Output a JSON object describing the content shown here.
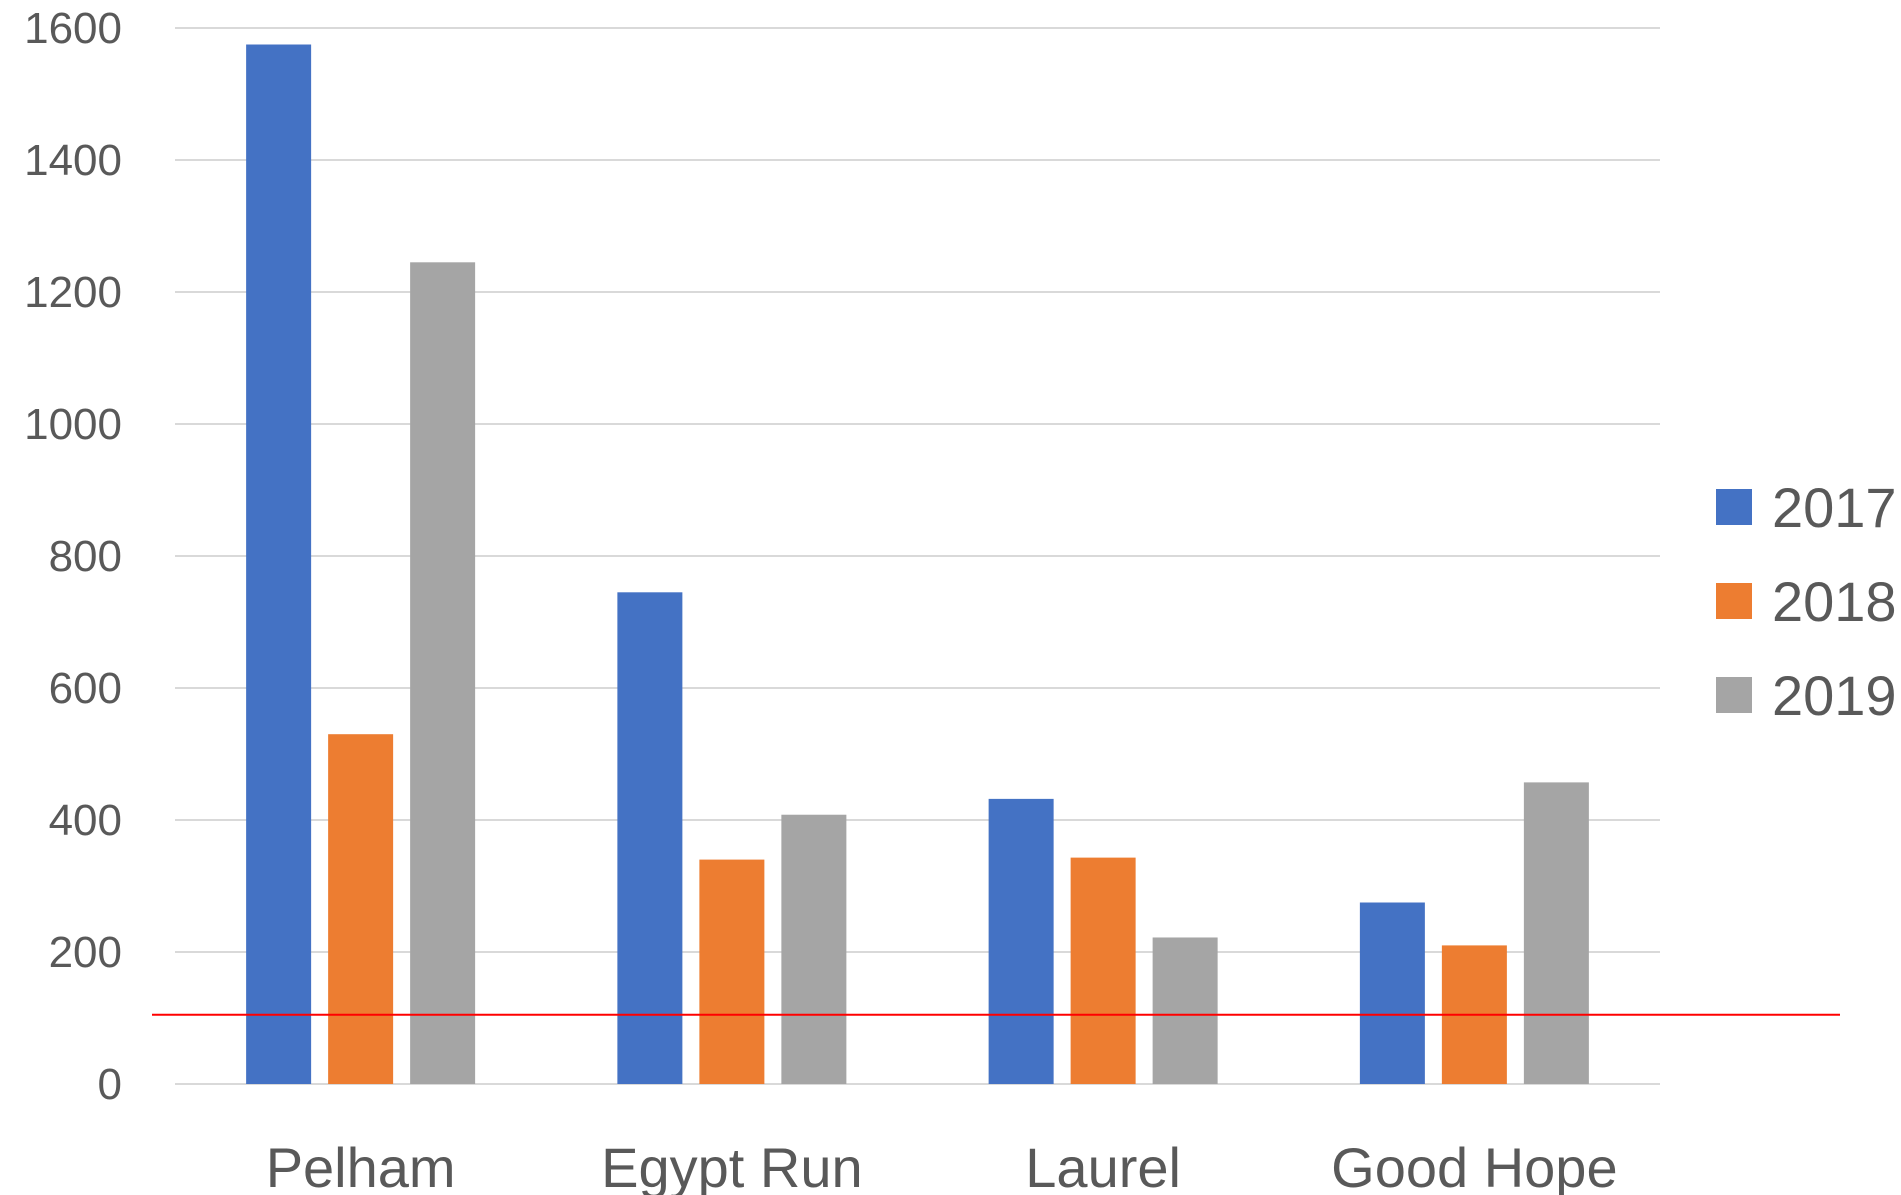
{
  "chart_data": {
    "type": "bar",
    "title": "",
    "xlabel": "",
    "ylabel": "",
    "categories": [
      "Pelham",
      "Egypt Run",
      "Laurel",
      "Good Hope"
    ],
    "series": [
      {
        "name": "2017",
        "color": "#4472C4",
        "values": [
          1575,
          745,
          432,
          275
        ]
      },
      {
        "name": "2018",
        "color": "#ED7D31",
        "values": [
          530,
          340,
          343,
          210
        ]
      },
      {
        "name": "2019",
        "color": "#A5A5A5",
        "values": [
          1245,
          408,
          222,
          457
        ]
      }
    ],
    "ylim": [
      0,
      1600
    ],
    "yticks": [
      "0",
      "200",
      "400",
      "600",
      "800",
      "1000",
      "1200",
      "1400",
      "1600"
    ],
    "grid": true,
    "gridline_color": "#D9D9D9",
    "reference_line": {
      "value": 105,
      "color": "#FF0000"
    },
    "legend_position": "right"
  }
}
